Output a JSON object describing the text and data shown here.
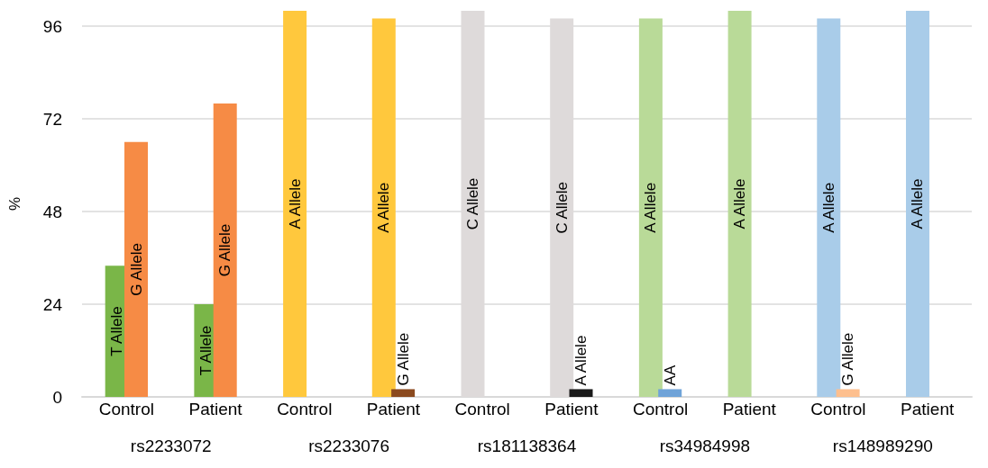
{
  "chart_data": {
    "type": "bar",
    "ylabel": "%",
    "categories": [
      "Control",
      "Patient",
      "Control",
      "Patient",
      "Control",
      "Patient",
      "Control",
      "Patient",
      "Control",
      "Patient"
    ],
    "series": [
      {
        "colors": [
          "#7ab648",
          "#7ab648",
          "#ffc83d",
          "#ffc83d",
          "#dedada",
          "#dedada",
          "#b9da98",
          "#b9da98",
          "#a9cce9",
          "#a9cce9"
        ],
        "values": [
          34,
          24,
          100,
          98,
          100,
          98,
          98,
          100,
          98,
          100
        ],
        "value_labels": [
          "T Allele",
          "T Allele",
          "A Allele",
          "A Allele",
          "C Allele",
          "C Allele",
          "A Allele",
          "A Allele",
          "A Allele",
          "A Allele"
        ]
      },
      {
        "colors": [
          "#f68b45",
          "#f68b45",
          null,
          "#8b4a1f",
          null,
          "#1a1a1a",
          "#6fa3d8",
          null,
          "#fdbf8e",
          null
        ],
        "values": [
          66,
          76,
          null,
          2,
          null,
          2,
          2,
          null,
          2,
          null
        ],
        "value_labels": [
          "G Allele",
          "G Allele",
          null,
          "G Allele",
          null,
          "A Allele",
          "AA",
          null,
          "G Allele",
          null
        ]
      }
    ],
    "annotations": [
      "rs2233072",
      "rs2233076",
      "rs181138364",
      "rs34984998",
      "rs148989290"
    ],
    "ylim": [
      0,
      100
    ],
    "yticks": [
      0,
      24,
      48,
      72,
      96
    ],
    "grid": "y"
  }
}
